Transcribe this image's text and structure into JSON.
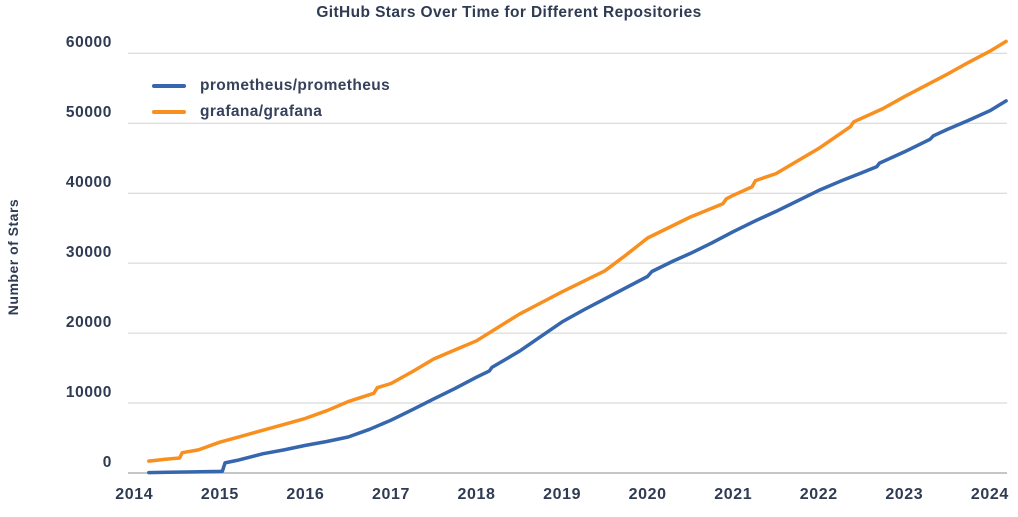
{
  "chart_data": {
    "type": "line",
    "title": "GitHub Stars Over Time for Different Repositories",
    "xlabel": "",
    "ylabel": "Number of Stars",
    "x_ticks": [
      2014,
      2015,
      2016,
      2017,
      2018,
      2019,
      2020,
      2021,
      2022,
      2023,
      2024
    ],
    "y_ticks": [
      0,
      10000,
      20000,
      30000,
      40000,
      50000,
      60000
    ],
    "xlim": [
      2013.95,
      2024.2
    ],
    "ylim": [
      0,
      61900
    ],
    "grid": "horizontal",
    "legend_position": "upper-left",
    "text_color": "#2f3b52",
    "grid_color": "#d2d2d2",
    "axis_color": "#a0a4aa",
    "series": [
      {
        "name": "prometheus/prometheus",
        "color": "#3566ae",
        "points": [
          [
            2014.17,
            60
          ],
          [
            2014.4,
            110
          ],
          [
            2014.7,
            160
          ],
          [
            2015.0,
            230
          ],
          [
            2015.03,
            260
          ],
          [
            2015.06,
            1450
          ],
          [
            2015.2,
            1800
          ],
          [
            2015.5,
            2750
          ],
          [
            2015.75,
            3300
          ],
          [
            2016.0,
            3950
          ],
          [
            2016.25,
            4500
          ],
          [
            2016.5,
            5150
          ],
          [
            2016.75,
            6250
          ],
          [
            2017.0,
            7550
          ],
          [
            2017.25,
            9050
          ],
          [
            2017.5,
            10600
          ],
          [
            2017.75,
            12100
          ],
          [
            2018.0,
            13700
          ],
          [
            2018.15,
            14600
          ],
          [
            2018.18,
            15100
          ],
          [
            2018.5,
            17400
          ],
          [
            2018.75,
            19500
          ],
          [
            2019.0,
            21600
          ],
          [
            2019.25,
            23300
          ],
          [
            2019.5,
            24900
          ],
          [
            2019.75,
            26500
          ],
          [
            2020.0,
            28100
          ],
          [
            2020.05,
            28800
          ],
          [
            2020.3,
            30300
          ],
          [
            2020.5,
            31400
          ],
          [
            2020.75,
            32900
          ],
          [
            2021.0,
            34500
          ],
          [
            2021.25,
            36000
          ],
          [
            2021.5,
            37400
          ],
          [
            2021.75,
            38900
          ],
          [
            2022.0,
            40400
          ],
          [
            2022.25,
            41700
          ],
          [
            2022.5,
            42900
          ],
          [
            2022.68,
            43800
          ],
          [
            2022.71,
            44300
          ],
          [
            2023.0,
            45900
          ],
          [
            2023.3,
            47700
          ],
          [
            2023.34,
            48200
          ],
          [
            2023.5,
            49100
          ],
          [
            2023.75,
            50400
          ],
          [
            2024.0,
            51800
          ],
          [
            2024.19,
            53200
          ]
        ]
      },
      {
        "name": "grafana/grafana",
        "color": "#f88f1e",
        "points": [
          [
            2014.17,
            1700
          ],
          [
            2014.35,
            1950
          ],
          [
            2014.53,
            2150
          ],
          [
            2014.56,
            2900
          ],
          [
            2014.75,
            3300
          ],
          [
            2015.0,
            4400
          ],
          [
            2015.25,
            5250
          ],
          [
            2015.5,
            6100
          ],
          [
            2015.75,
            6950
          ],
          [
            2016.0,
            7800
          ],
          [
            2016.25,
            8900
          ],
          [
            2016.5,
            10200
          ],
          [
            2016.8,
            11400
          ],
          [
            2016.84,
            12200
          ],
          [
            2017.0,
            12800
          ],
          [
            2017.25,
            14500
          ],
          [
            2017.5,
            16300
          ],
          [
            2017.75,
            17600
          ],
          [
            2018.0,
            18900
          ],
          [
            2018.25,
            20800
          ],
          [
            2018.5,
            22700
          ],
          [
            2018.75,
            24300
          ],
          [
            2019.0,
            25900
          ],
          [
            2019.25,
            27400
          ],
          [
            2019.5,
            28900
          ],
          [
            2019.75,
            31200
          ],
          [
            2020.0,
            33600
          ],
          [
            2020.25,
            35100
          ],
          [
            2020.5,
            36600
          ],
          [
            2020.88,
            38500
          ],
          [
            2020.92,
            39200
          ],
          [
            2021.0,
            39700
          ],
          [
            2021.22,
            40900
          ],
          [
            2021.26,
            41800
          ],
          [
            2021.5,
            42800
          ],
          [
            2021.75,
            44600
          ],
          [
            2022.0,
            46400
          ],
          [
            2022.37,
            49500
          ],
          [
            2022.41,
            50200
          ],
          [
            2022.75,
            52100
          ],
          [
            2023.0,
            53800
          ],
          [
            2023.5,
            57000
          ],
          [
            2023.75,
            58700
          ],
          [
            2024.0,
            60300
          ],
          [
            2024.19,
            61700
          ]
        ]
      }
    ]
  }
}
